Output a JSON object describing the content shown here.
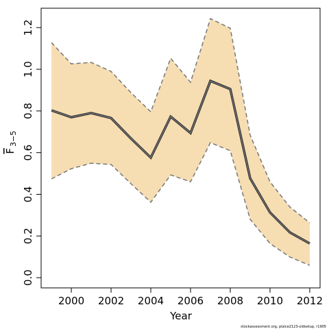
{
  "chart_data": {
    "type": "line",
    "xlabel": "Year",
    "ylabel": "F",
    "ylabel_sub": "3−5",
    "footer": "stockassessment.org, plaice2123-oldsetup, r1905",
    "x": [
      1999,
      2000,
      2001,
      2002,
      2003,
      2004,
      2005,
      2006,
      2007,
      2008,
      2009,
      2010,
      2011,
      2012
    ],
    "values": [
      0.803,
      0.77,
      0.79,
      0.766,
      0.668,
      0.576,
      0.773,
      0.694,
      0.944,
      0.905,
      0.477,
      0.313,
      0.217,
      0.164
    ],
    "upper": [
      1.128,
      1.026,
      1.033,
      0.99,
      0.888,
      0.796,
      1.053,
      0.938,
      1.243,
      1.197,
      0.684,
      0.46,
      0.339,
      0.263
    ],
    "lower": [
      0.474,
      0.523,
      0.549,
      0.543,
      0.451,
      0.362,
      0.493,
      0.46,
      0.648,
      0.609,
      0.28,
      0.164,
      0.099,
      0.059
    ],
    "color": "#333333",
    "band_color": "#f6ddb2",
    "band_line_color": "#777777",
    "xlim": [
      1998.48,
      2012.52
    ],
    "ylim": [
      -0.049,
      1.293
    ],
    "xticks": [
      2000,
      2002,
      2004,
      2006,
      2008,
      2010,
      2012
    ],
    "yticks": [
      {
        "value": 0,
        "label": "0.0"
      },
      0.2,
      0.4,
      0.6,
      0.8,
      {
        "value": 1,
        "label": "1.0"
      },
      1.2
    ]
  }
}
